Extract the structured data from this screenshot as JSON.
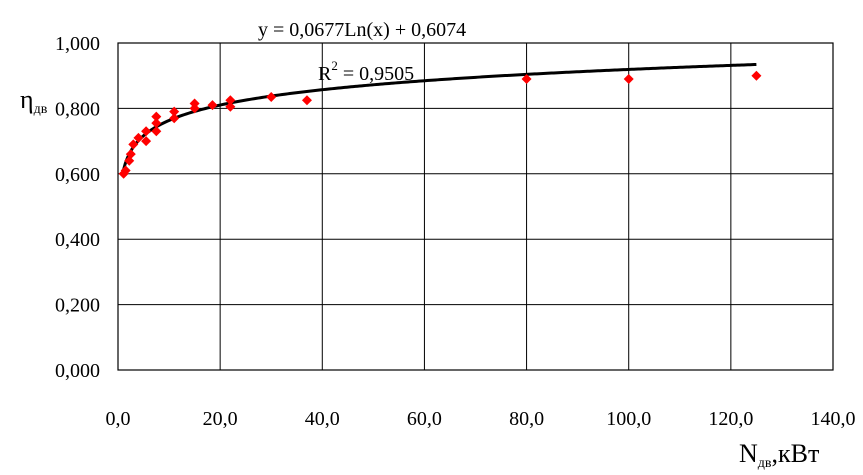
{
  "chart_data": {
    "type": "scatter",
    "x": [
      1.1,
      1.5,
      2.2,
      2.5,
      3.0,
      4.0,
      5.5,
      5.5,
      7.5,
      7.5,
      7.5,
      11.0,
      11.0,
      15.0,
      15.0,
      18.5,
      22.0,
      22.0,
      30.0,
      37.0,
      80.0,
      100.0,
      125.0
    ],
    "y": [
      0.6,
      0.61,
      0.64,
      0.66,
      0.69,
      0.71,
      0.7,
      0.73,
      0.73,
      0.755,
      0.775,
      0.77,
      0.79,
      0.8,
      0.815,
      0.81,
      0.805,
      0.825,
      0.835,
      0.825,
      0.89,
      0.89,
      0.9
    ],
    "marker_color": "#ff0000",
    "trendline": {
      "type": "logarithmic",
      "a": 0.0677,
      "b": 0.6074,
      "x_range": [
        1.0,
        125.0
      ],
      "color": "#000000",
      "equation_prefix": "y = 0,0677Ln(x) + 0,6074",
      "r2_base": "R",
      "r2_sup": "2",
      "r2_value": " = 0,9505"
    },
    "xlim": [
      0,
      140
    ],
    "ylim": [
      0,
      1
    ],
    "x_ticks": [
      "0,0",
      "20,0",
      "40,0",
      "60,0",
      "80,0",
      "100,0",
      "120,0",
      "140,0"
    ],
    "y_ticks": [
      "0,000",
      "0,200",
      "0,400",
      "0,600",
      "0,800",
      "1,000"
    ],
    "ylabel_main": "η",
    "ylabel_sub": "дв",
    "xlabel_main": "N",
    "xlabel_sub": "дв",
    "xlabel_unit": ",кВт",
    "grid": true
  }
}
